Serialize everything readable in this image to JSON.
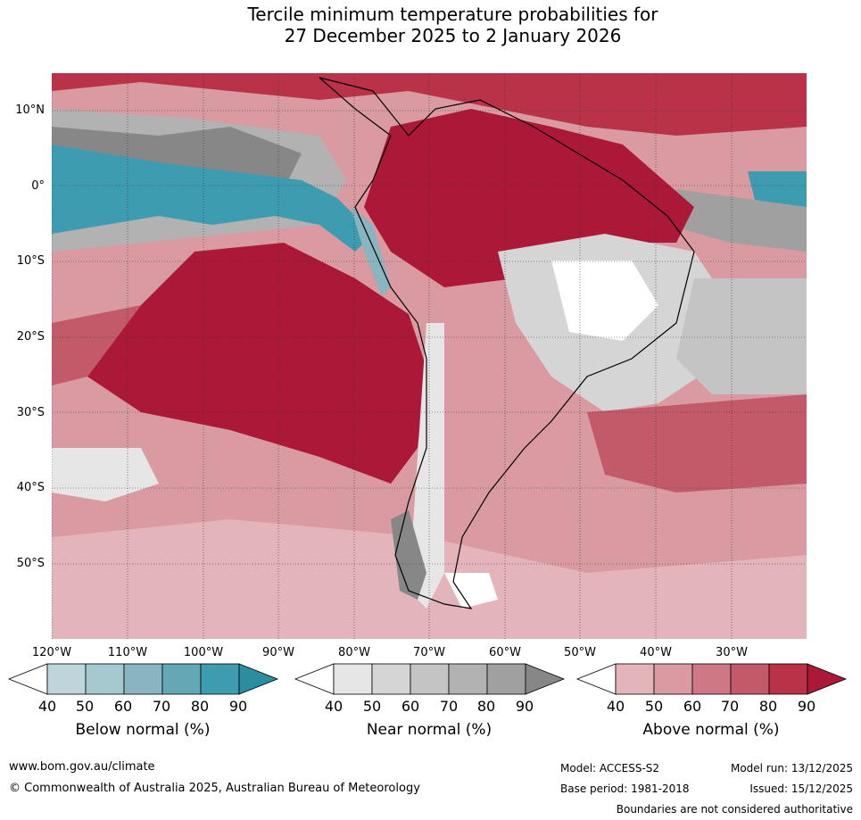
{
  "title": {
    "line1": "Tercile minimum temperature probabilities for",
    "line2": "27 December 2025 to 2 January 2026"
  },
  "map": {
    "lat_labels": [
      "10°N",
      "0°",
      "10°S",
      "20°S",
      "30°S",
      "40°S",
      "50°S"
    ],
    "lon_labels": [
      "120°W",
      "110°W",
      "100°W",
      "90°W",
      "80°W",
      "70°W",
      "60°W",
      "50°W",
      "40°W",
      "30°W"
    ]
  },
  "legends": [
    {
      "label": "Below normal (%)",
      "ticks": [
        "40",
        "50",
        "60",
        "70",
        "80",
        "90"
      ],
      "colors": [
        "#ffffff",
        "#bdd5db",
        "#a6c8cf",
        "#89b5c1",
        "#64a8b6",
        "#3e9cb0",
        "#2a8ea0"
      ]
    },
    {
      "label": "Near normal (%)",
      "ticks": [
        "40",
        "50",
        "60",
        "70",
        "80",
        "90"
      ],
      "colors": [
        "#ffffff",
        "#e6e6e6",
        "#d5d5d5",
        "#c4c4c4",
        "#b2b2b2",
        "#a0a0a0",
        "#878787"
      ]
    },
    {
      "label": "Above normal (%)",
      "ticks": [
        "40",
        "50",
        "60",
        "70",
        "80",
        "90"
      ],
      "colors": [
        "#ffffff",
        "#e3b4ba",
        "#d99aa2",
        "#cd7884",
        "#c25a69",
        "#b93248",
        "#ac1838"
      ]
    }
  ],
  "footer": {
    "website": "www.bom.gov.au/climate",
    "copyright": "© Commonwealth of Australia 2025, Australian Bureau of Meteorology",
    "model": "Model: ACCESS-S2",
    "model_run": "Model run: 13/12/2025",
    "base_period": "Base period: 1981-2018",
    "issued": "Issued: 15/12/2025",
    "disclaimer": "Boundaries are not considered authoritative"
  }
}
